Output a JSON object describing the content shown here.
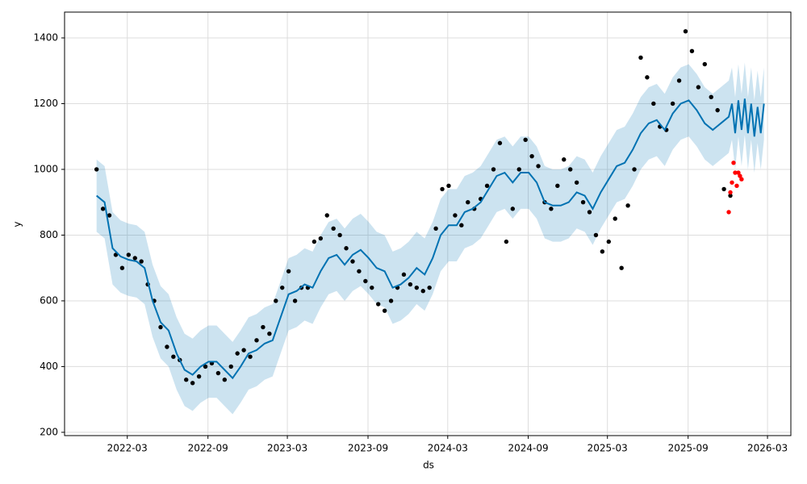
{
  "chart_data": {
    "type": "forecast",
    "xlabel": "ds",
    "ylabel": "y",
    "xlim": [
      2021.77,
      2026.308
    ],
    "ylim": [
      190,
      1478.5
    ],
    "xticks": [
      {
        "value": 2022.162,
        "label": "2022-03"
      },
      {
        "value": 2022.666,
        "label": "2022-09"
      },
      {
        "value": 2023.162,
        "label": "2023-03"
      },
      {
        "value": 2023.666,
        "label": "2023-09"
      },
      {
        "value": 2024.164,
        "label": "2024-03"
      },
      {
        "value": 2024.667,
        "label": "2024-09"
      },
      {
        "value": 2025.162,
        "label": "2025-03"
      },
      {
        "value": 2025.666,
        "label": "2025-09"
      },
      {
        "value": 2026.162,
        "label": "2026-03"
      }
    ],
    "yticks": [
      200,
      400,
      600,
      800,
      1000,
      1200,
      1400
    ],
    "grid": true,
    "series": [
      {
        "type": "band",
        "color": "#0072B2",
        "x": [
          2021.97,
          2022.02,
          2022.07,
          2022.12,
          2022.17,
          2022.22,
          2022.27,
          2022.32,
          2022.37,
          2022.42,
          2022.47,
          2022.52,
          2022.57,
          2022.62,
          2022.67,
          2022.72,
          2022.77,
          2022.82,
          2022.87,
          2022.92,
          2022.97,
          2023.02,
          2023.07,
          2023.12,
          2023.17,
          2023.22,
          2023.27,
          2023.32,
          2023.37,
          2023.42,
          2023.47,
          2023.52,
          2023.57,
          2023.62,
          2023.67,
          2023.72,
          2023.77,
          2023.82,
          2023.87,
          2023.92,
          2023.97,
          2024.02,
          2024.07,
          2024.12,
          2024.17,
          2024.22,
          2024.27,
          2024.32,
          2024.37,
          2024.42,
          2024.47,
          2024.52,
          2024.57,
          2024.62,
          2024.67,
          2024.72,
          2024.77,
          2024.82,
          2024.87,
          2024.92,
          2024.97,
          2025.02,
          2025.07,
          2025.12,
          2025.17,
          2025.22,
          2025.27,
          2025.32,
          2025.37,
          2025.42,
          2025.47,
          2025.52,
          2025.57,
          2025.62,
          2025.67,
          2025.72,
          2025.77,
          2025.82,
          2025.87,
          2025.92,
          2025.94,
          2025.96,
          2025.98,
          2026.0,
          2026.02,
          2026.04,
          2026.06,
          2026.08,
          2026.1,
          2026.12,
          2026.14
        ],
        "upper": [
          1030,
          1010,
          870,
          845,
          835,
          830,
          810,
          710,
          645,
          620,
          550,
          500,
          485,
          510,
          525,
          525,
          500,
          475,
          510,
          550,
          560,
          580,
          590,
          660,
          730,
          740,
          760,
          750,
          800,
          840,
          850,
          820,
          850,
          865,
          840,
          810,
          800,
          750,
          760,
          780,
          810,
          790,
          840,
          910,
          940,
          940,
          980,
          990,
          1010,
          1050,
          1090,
          1100,
          1070,
          1100,
          1100,
          1070,
          1010,
          1000,
          1000,
          1010,
          1040,
          1030,
          990,
          1040,
          1080,
          1120,
          1130,
          1170,
          1220,
          1250,
          1260,
          1230,
          1280,
          1310,
          1320,
          1290,
          1250,
          1230,
          1250,
          1270,
          1310,
          1220,
          1320,
          1230,
          1325,
          1220,
          1310,
          1210,
          1300,
          1220,
          1310
        ],
        "lower": [
          810,
          790,
          650,
          625,
          615,
          610,
          590,
          490,
          425,
          400,
          330,
          280,
          265,
          290,
          305,
          305,
          280,
          255,
          290,
          330,
          340,
          360,
          370,
          440,
          510,
          520,
          540,
          530,
          580,
          620,
          630,
          600,
          630,
          645,
          620,
          590,
          580,
          530,
          540,
          560,
          590,
          570,
          620,
          690,
          720,
          720,
          760,
          770,
          790,
          830,
          870,
          880,
          850,
          880,
          880,
          850,
          790,
          780,
          780,
          790,
          820,
          810,
          770,
          820,
          860,
          900,
          910,
          950,
          1000,
          1030,
          1040,
          1010,
          1060,
          1090,
          1100,
          1070,
          1030,
          1010,
          1030,
          1050,
          1090,
          1000,
          1100,
          1010,
          1105,
          1000,
          1090,
          990,
          1080,
          1000,
          1090
        ]
      },
      {
        "type": "scatter",
        "color": "#000000",
        "x": [
          2021.97,
          2022.01,
          2022.05,
          2022.09,
          2022.13,
          2022.17,
          2022.21,
          2022.25,
          2022.29,
          2022.33,
          2022.37,
          2022.41,
          2022.45,
          2022.49,
          2022.53,
          2022.57,
          2022.61,
          2022.65,
          2022.69,
          2022.73,
          2022.77,
          2022.81,
          2022.85,
          2022.89,
          2022.93,
          2022.97,
          2023.01,
          2023.05,
          2023.09,
          2023.13,
          2023.17,
          2023.21,
          2023.25,
          2023.29,
          2023.33,
          2023.37,
          2023.41,
          2023.45,
          2023.49,
          2023.53,
          2023.57,
          2023.61,
          2023.65,
          2023.69,
          2023.73,
          2023.77,
          2023.81,
          2023.85,
          2023.89,
          2023.93,
          2023.97,
          2024.01,
          2024.05,
          2024.09,
          2024.13,
          2024.17,
          2024.21,
          2024.25,
          2024.29,
          2024.33,
          2024.37,
          2024.41,
          2024.45,
          2024.49,
          2024.53,
          2024.57,
          2024.61,
          2024.65,
          2024.69,
          2024.73,
          2024.77,
          2024.81,
          2024.85,
          2024.89,
          2024.93,
          2024.97,
          2025.01,
          2025.05,
          2025.09,
          2025.13,
          2025.17,
          2025.21,
          2025.25,
          2025.29,
          2025.33,
          2025.37,
          2025.41,
          2025.45,
          2025.49,
          2025.53,
          2025.57,
          2025.61,
          2025.65,
          2025.69,
          2025.73,
          2025.77,
          2025.81,
          2025.85,
          2025.89,
          2025.93
        ],
        "values": [
          1000,
          880,
          860,
          740,
          700,
          740,
          730,
          720,
          650,
          600,
          520,
          460,
          430,
          420,
          360,
          350,
          370,
          400,
          410,
          380,
          360,
          400,
          440,
          450,
          430,
          480,
          520,
          500,
          600,
          640,
          690,
          600,
          640,
          640,
          780,
          790,
          860,
          820,
          800,
          760,
          720,
          690,
          660,
          640,
          590,
          570,
          600,
          640,
          680,
          650,
          640,
          630,
          640,
          820,
          940,
          950,
          860,
          830,
          900,
          880,
          910,
          950,
          1000,
          1080,
          780,
          880,
          1000,
          1090,
          1040,
          1010,
          900,
          880,
          950,
          1030,
          1000,
          960,
          900,
          870,
          800,
          750,
          780,
          850,
          700,
          890,
          1000,
          1340,
          1280,
          1200,
          1130,
          1120,
          1200,
          1270,
          1420,
          1360,
          1250,
          1320,
          1220,
          1180,
          940,
          920
        ]
      },
      {
        "type": "scatter",
        "color": "#ff0000",
        "x": [
          2025.92,
          2025.93,
          2025.94,
          2025.95,
          2025.96,
          2025.97,
          2025.98,
          2025.99,
          2026.0
        ],
        "values": [
          870,
          930,
          960,
          1020,
          990,
          950,
          990,
          980,
          970
        ]
      },
      {
        "type": "line",
        "color": "#0072B2",
        "x": [
          2021.97,
          2022.02,
          2022.07,
          2022.12,
          2022.17,
          2022.22,
          2022.27,
          2022.32,
          2022.37,
          2022.42,
          2022.47,
          2022.52,
          2022.57,
          2022.62,
          2022.67,
          2022.72,
          2022.77,
          2022.82,
          2022.87,
          2022.92,
          2022.97,
          2023.02,
          2023.07,
          2023.12,
          2023.17,
          2023.22,
          2023.27,
          2023.32,
          2023.37,
          2023.42,
          2023.47,
          2023.52,
          2023.57,
          2023.62,
          2023.67,
          2023.72,
          2023.77,
          2023.82,
          2023.87,
          2023.92,
          2023.97,
          2024.02,
          2024.07,
          2024.12,
          2024.17,
          2024.22,
          2024.27,
          2024.32,
          2024.37,
          2024.42,
          2024.47,
          2024.52,
          2024.57,
          2024.62,
          2024.67,
          2024.72,
          2024.77,
          2024.82,
          2024.87,
          2024.92,
          2024.97,
          2025.02,
          2025.07,
          2025.12,
          2025.17,
          2025.22,
          2025.27,
          2025.32,
          2025.37,
          2025.42,
          2025.47,
          2025.52,
          2025.57,
          2025.62,
          2025.67,
          2025.72,
          2025.77,
          2025.82,
          2025.87,
          2025.92,
          2025.94,
          2025.96,
          2025.98,
          2026.0,
          2026.02,
          2026.04,
          2026.06,
          2026.08,
          2026.1,
          2026.12,
          2026.14
        ],
        "values": [
          920,
          900,
          760,
          735,
          725,
          720,
          700,
          600,
          535,
          510,
          440,
          390,
          375,
          400,
          415,
          415,
          390,
          365,
          400,
          440,
          450,
          470,
          480,
          550,
          620,
          630,
          650,
          640,
          690,
          730,
          740,
          710,
          740,
          755,
          730,
          700,
          690,
          640,
          650,
          670,
          700,
          680,
          730,
          800,
          830,
          830,
          870,
          880,
          900,
          940,
          980,
          990,
          960,
          990,
          990,
          960,
          900,
          890,
          890,
          900,
          930,
          920,
          880,
          930,
          970,
          1010,
          1020,
          1060,
          1110,
          1140,
          1150,
          1120,
          1170,
          1200,
          1210,
          1180,
          1140,
          1120,
          1140,
          1160,
          1200,
          1110,
          1210,
          1120,
          1215,
          1110,
          1200,
          1100,
          1190,
          1110,
          1200
        ]
      }
    ]
  }
}
